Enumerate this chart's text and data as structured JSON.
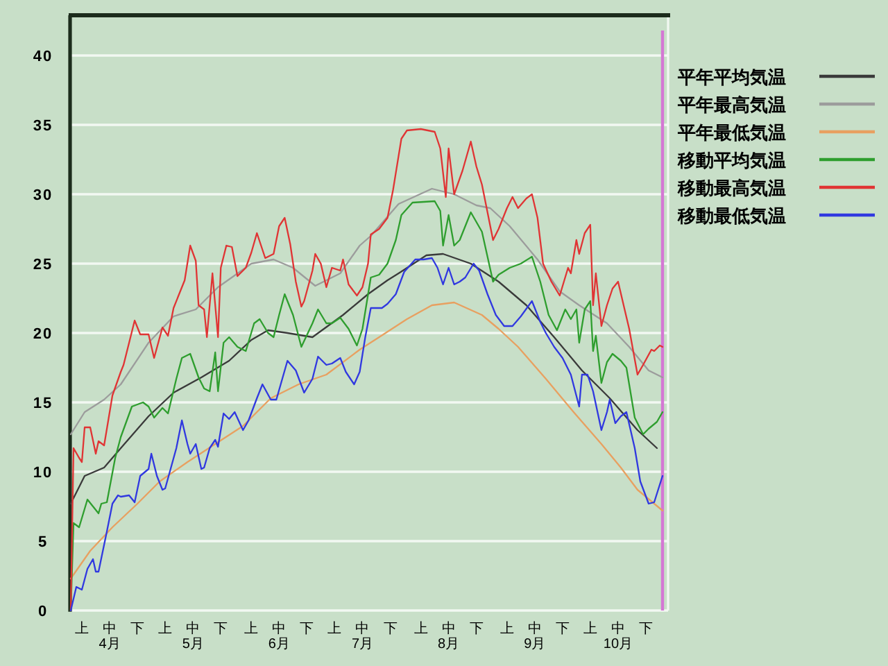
{
  "chart_data": {
    "type": "line",
    "xlim": [
      "--04-01",
      "--11-02"
    ],
    "xticks": [
      {
        "value": "--04-05",
        "label": "上"
      },
      {
        "value": "--04-15",
        "label": "中\n4月"
      },
      {
        "value": "--04-25",
        "label": "下"
      },
      {
        "value": "--05-05",
        "label": "上"
      },
      {
        "value": "--05-15",
        "label": "中\n5月"
      },
      {
        "value": "--05-25",
        "label": "下"
      },
      {
        "value": "--06-05",
        "label": "上"
      },
      {
        "value": "--06-15",
        "label": "中\n6月"
      },
      {
        "value": "--06-25",
        "label": "下"
      },
      {
        "value": "--07-05",
        "label": "上"
      },
      {
        "value": "--07-15",
        "label": "中\n7月"
      },
      {
        "value": "--07-25",
        "label": "下"
      },
      {
        "value": "--08-05",
        "label": "上"
      },
      {
        "value": "--08-15",
        "label": "中\n8月"
      },
      {
        "value": "--08-25",
        "label": "下"
      },
      {
        "value": "--09-05",
        "label": "上"
      },
      {
        "value": "--09-15",
        "label": "中\n9月"
      },
      {
        "value": "--09-25",
        "label": "下"
      },
      {
        "value": "--10-05",
        "label": "上"
      },
      {
        "value": "--10-15",
        "label": "中\n10月"
      },
      {
        "value": "--10-25",
        "label": "下"
      }
    ],
    "ylim": [
      0,
      42.9
    ],
    "yticks": [
      0,
      5,
      10,
      15,
      20,
      25,
      30,
      35,
      40
    ],
    "grid": "y",
    "legend": "right",
    "ref_lines": [
      {
        "axis": "x",
        "value": "--10-31",
        "color": "#d478d4"
      }
    ],
    "series": [
      {
        "name": "平年平均気温",
        "color": "#3a3a3a",
        "x": [
          "--04-01",
          "--04-06",
          "--04-13",
          "--04-19",
          "--04-29",
          "--05-08",
          "--05-18",
          "--05-28",
          "--06-05",
          "--06-11",
          "--06-18",
          "--06-27",
          "--07-08",
          "--07-17",
          "--07-24",
          "--07-28",
          "--08-07",
          "--08-13",
          "--08-23",
          "--09-02",
          "--09-12",
          "--09-22",
          "--10-02",
          "--10-12",
          "--10-22",
          "--10-29"
        ],
        "values": [
          7.7,
          9.7,
          10.3,
          11.7,
          14.0,
          15.7,
          16.8,
          18.0,
          19.5,
          20.2,
          20.0,
          19.7,
          21.3,
          22.8,
          23.8,
          24.3,
          25.6,
          25.7,
          25.0,
          23.7,
          22.0,
          19.7,
          17.3,
          15.3,
          13.0,
          11.7
        ]
      },
      {
        "name": "平年最高気温",
        "color": "#9c9c9c",
        "x": [
          "--04-01",
          "--04-06",
          "--04-13",
          "--04-19",
          "--04-29",
          "--05-08",
          "--05-16",
          "--05-24",
          "--06-05",
          "--06-13",
          "--06-20",
          "--06-28",
          "--07-07",
          "--07-14",
          "--07-18",
          "--07-28",
          "--08-09",
          "--08-17",
          "--08-25",
          "--08-30",
          "--09-06",
          "--09-16",
          "--09-24",
          "--10-01",
          "--10-11",
          "--10-19",
          "--10-26",
          "--10-31"
        ],
        "values": [
          12.7,
          14.3,
          15.2,
          16.3,
          19.3,
          21.2,
          21.7,
          23.3,
          25.0,
          25.3,
          24.7,
          23.4,
          24.3,
          26.3,
          27.0,
          29.3,
          30.4,
          30.0,
          29.2,
          29.0,
          27.7,
          25.3,
          23.0,
          22.0,
          20.7,
          19.0,
          17.3,
          16.8
        ]
      },
      {
        "name": "平年最低気温",
        "color": "#e8a060",
        "x": [
          "--04-01",
          "--04-08",
          "--04-16",
          "--04-25",
          "--05-03",
          "--05-13",
          "--05-23",
          "--06-02",
          "--06-12",
          "--06-22",
          "--07-02",
          "--07-14",
          "--07-21",
          "--07-31",
          "--08-09",
          "--08-17",
          "--08-27",
          "--09-02",
          "--09-09",
          "--09-19",
          "--09-29",
          "--10-09",
          "--10-16",
          "--10-22",
          "--10-31"
        ],
        "values": [
          2.3,
          4.3,
          6.0,
          7.7,
          9.3,
          10.7,
          12.0,
          13.3,
          15.3,
          16.3,
          17.0,
          18.8,
          19.7,
          21.0,
          22.0,
          22.2,
          21.3,
          20.3,
          19.0,
          16.7,
          14.3,
          12.0,
          10.3,
          8.7,
          7.2
        ]
      },
      {
        "name": "移動平均気温",
        "color": "#2e9e2e",
        "x": [
          "--04-01",
          "--04-02",
          "--04-04",
          "--04-07",
          "--04-11",
          "--04-12",
          "--04-14",
          "--04-17",
          "--04-19",
          "--04-23",
          "--04-27",
          "--04-29",
          "--05-01",
          "--05-04",
          "--05-06",
          "--05-09",
          "--05-11",
          "--05-14",
          "--05-17",
          "--05-19",
          "--05-21",
          "--05-23",
          "--05-24",
          "--05-26",
          "--05-28",
          "--05-31",
          "--06-03",
          "--06-06",
          "--06-08",
          "--06-11",
          "--06-13",
          "--06-15",
          "--06-17",
          "--06-20",
          "--06-23",
          "--06-27",
          "--06-29",
          "--07-02",
          "--07-04",
          "--07-07",
          "--07-10",
          "--07-13",
          "--07-15",
          "--07-18",
          "--07-21",
          "--07-24",
          "--07-27",
          "--07-29",
          "--08-02",
          "--08-10",
          "--08-12",
          "--08-13",
          "--08-15",
          "--08-17",
          "--08-19",
          "--08-23",
          "--08-27",
          "--08-31",
          "--09-02",
          "--09-06",
          "--09-10",
          "--09-14",
          "--09-17",
          "--09-20",
          "--09-23",
          "--09-26",
          "--09-28",
          "--09-30",
          "--10-01",
          "--10-03",
          "--10-05",
          "--10-06",
          "--10-07",
          "--10-09",
          "--10-11",
          "--10-13",
          "--10-16",
          "--10-18",
          "--10-21",
          "--10-24",
          "--10-26",
          "--10-29",
          "--10-31"
        ],
        "values": [
          0,
          6.3,
          6.0,
          8.0,
          7.0,
          7.7,
          7.8,
          11.0,
          12.5,
          14.7,
          15.0,
          14.7,
          13.9,
          14.6,
          14.2,
          16.7,
          18.2,
          18.5,
          16.8,
          16.0,
          15.8,
          18.6,
          15.8,
          19.3,
          19.7,
          19.0,
          18.7,
          20.7,
          21.0,
          20.0,
          19.7,
          21.3,
          22.8,
          21.3,
          19.0,
          20.7,
          21.7,
          20.7,
          20.7,
          21.1,
          20.3,
          19.1,
          20.3,
          24.0,
          24.2,
          25.0,
          26.7,
          28.5,
          29.4,
          29.5,
          28.8,
          26.3,
          28.5,
          26.3,
          26.7,
          28.7,
          27.3,
          23.7,
          24.2,
          24.7,
          25.0,
          25.5,
          23.7,
          21.3,
          20.2,
          21.7,
          21.0,
          21.7,
          19.3,
          21.7,
          22.3,
          18.7,
          19.8,
          16.4,
          17.9,
          18.5,
          18.0,
          17.5,
          13.9,
          12.7,
          13.1,
          13.6,
          14.3
        ]
      },
      {
        "name": "移動最高気温",
        "color": "#e03434",
        "x": [
          "--04-01",
          "--04-02",
          "--04-04",
          "--04-05",
          "--04-06",
          "--04-08",
          "--04-10",
          "--04-11",
          "--04-13",
          "--04-16",
          "--04-19",
          "--04-20",
          "--04-22",
          "--04-24",
          "--04-26",
          "--04-29",
          "--05-01",
          "--05-04",
          "--05-06",
          "--05-08",
          "--05-12",
          "--05-14",
          "--05-16",
          "--05-17",
          "--05-19",
          "--05-20",
          "--05-22",
          "--05-24",
          "--05-25",
          "--05-27",
          "--05-29",
          "--05-31",
          "--06-03",
          "--06-05",
          "--06-07",
          "--06-10",
          "--06-13",
          "--06-15",
          "--06-17",
          "--06-19",
          "--06-21",
          "--06-23",
          "--06-24",
          "--06-27",
          "--06-28",
          "--06-30",
          "--07-02",
          "--07-04",
          "--07-07",
          "--07-08",
          "--07-10",
          "--07-13",
          "--07-15",
          "--07-17",
          "--07-18",
          "--07-21",
          "--07-24",
          "--07-26",
          "--07-29",
          "--07-31",
          "--08-05",
          "--08-10",
          "--08-12",
          "--08-14",
          "--08-15",
          "--08-17",
          "--08-20",
          "--08-23",
          "--08-25",
          "--08-27",
          "--08-29",
          "--08-31",
          "--09-02",
          "--09-05",
          "--09-07",
          "--09-09",
          "--09-12",
          "--09-14",
          "--09-16",
          "--09-18",
          "--09-21",
          "--09-24",
          "--09-27",
          "--09-28",
          "--09-30",
          "--10-01",
          "--10-03",
          "--10-05",
          "--10-06",
          "--10-07",
          "--10-09",
          "--10-11",
          "--10-13",
          "--10-15",
          "--10-17",
          "--10-19",
          "--10-22",
          "--10-24",
          "--10-27",
          "--10-28",
          "--10-30",
          "--10-31"
        ],
        "values": [
          0,
          11.7,
          11.0,
          10.7,
          13.2,
          13.2,
          11.3,
          12.2,
          11.9,
          15.5,
          17.2,
          17.7,
          19.3,
          20.9,
          19.9,
          19.9,
          18.2,
          20.4,
          19.8,
          21.8,
          23.8,
          26.3,
          25.2,
          22.0,
          21.7,
          19.7,
          24.3,
          19.7,
          24.7,
          26.3,
          26.2,
          24.1,
          24.7,
          25.8,
          27.2,
          25.4,
          25.7,
          27.7,
          28.3,
          26.4,
          23.7,
          21.9,
          22.3,
          24.5,
          25.7,
          25.0,
          23.3,
          24.7,
          24.5,
          25.3,
          23.5,
          22.7,
          23.3,
          25.0,
          27.1,
          27.5,
          28.3,
          30.3,
          34.0,
          34.6,
          34.7,
          34.5,
          33.3,
          29.8,
          33.3,
          30.0,
          31.7,
          33.8,
          32.0,
          30.7,
          28.7,
          26.7,
          27.5,
          29.0,
          29.8,
          29.0,
          29.7,
          30.0,
          28.3,
          25.0,
          23.7,
          22.7,
          24.7,
          24.3,
          26.7,
          25.7,
          27.2,
          27.8,
          22.0,
          24.3,
          20.5,
          22.0,
          23.2,
          23.7,
          22.0,
          20.3,
          17.0,
          17.7,
          18.8,
          18.7,
          19.1,
          19.0
        ]
      },
      {
        "name": "移動最低気温",
        "color": "#3038e0",
        "x": [
          "--04-01",
          "--04-03",
          "--04-05",
          "--04-07",
          "--04-09",
          "--04-10",
          "--04-11",
          "--04-14",
          "--04-16",
          "--04-18",
          "--04-19",
          "--04-22",
          "--04-24",
          "--04-26",
          "--04-29",
          "--04-30",
          "--05-02",
          "--05-04",
          "--05-05",
          "--05-09",
          "--05-11",
          "--05-13",
          "--05-14",
          "--05-16",
          "--05-18",
          "--05-19",
          "--05-21",
          "--05-23",
          "--05-24",
          "--05-26",
          "--05-28",
          "--05-30",
          "--06-02",
          "--06-04",
          "--06-07",
          "--06-09",
          "--06-12",
          "--06-14",
          "--06-18",
          "--06-21",
          "--06-24",
          "--06-27",
          "--06-29",
          "--07-02",
          "--07-04",
          "--07-07",
          "--07-09",
          "--07-12",
          "--07-14",
          "--07-16",
          "--07-18",
          "--07-22",
          "--07-24",
          "--07-27",
          "--07-30",
          "--08-03",
          "--08-06",
          "--08-09",
          "--08-11",
          "--08-13",
          "--08-15",
          "--08-17",
          "--08-19",
          "--08-21",
          "--08-24",
          "--08-26",
          "--08-29",
          "--09-01",
          "--09-04",
          "--09-07",
          "--09-10",
          "--09-14",
          "--09-17",
          "--09-19",
          "--09-22",
          "--09-25",
          "--09-28",
          "--10-01",
          "--10-02",
          "--10-04",
          "--10-06",
          "--10-09",
          "--10-11",
          "--10-12",
          "--10-14",
          "--10-16",
          "--10-18",
          "--10-21",
          "--10-23",
          "--10-26",
          "--10-28",
          "--10-31"
        ],
        "values": [
          0,
          1.7,
          1.5,
          3.0,
          3.7,
          2.8,
          2.8,
          5.7,
          7.7,
          8.3,
          8.2,
          8.3,
          7.8,
          9.7,
          10.2,
          11.3,
          9.7,
          8.7,
          8.8,
          11.7,
          13.7,
          12.0,
          11.3,
          12.0,
          10.2,
          10.3,
          11.7,
          12.3,
          11.8,
          14.2,
          13.8,
          14.3,
          13.0,
          13.7,
          15.3,
          16.3,
          15.2,
          15.2,
          18.0,
          17.3,
          15.7,
          16.7,
          18.3,
          17.7,
          17.8,
          18.2,
          17.2,
          16.3,
          17.2,
          19.7,
          21.8,
          21.8,
          22.1,
          22.8,
          24.4,
          25.3,
          25.3,
          25.4,
          24.7,
          23.5,
          24.7,
          23.5,
          23.7,
          24.0,
          25.0,
          24.5,
          22.8,
          21.3,
          20.5,
          20.5,
          21.2,
          22.3,
          20.8,
          20.0,
          19.0,
          18.2,
          17.0,
          14.7,
          17.0,
          17.0,
          15.8,
          13.0,
          14.3,
          15.2,
          13.5,
          14.0,
          14.3,
          11.7,
          9.3,
          7.7,
          7.8,
          9.7
        ]
      }
    ]
  }
}
